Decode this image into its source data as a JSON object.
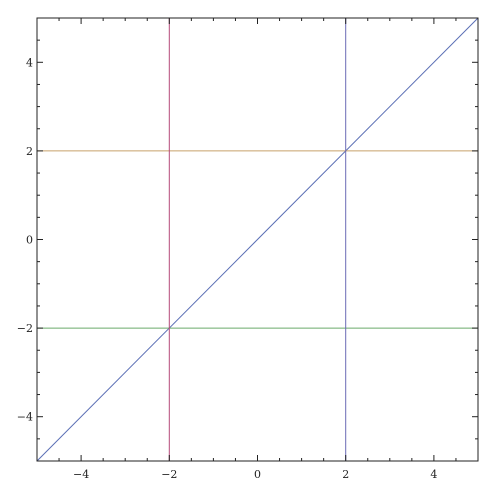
{
  "chart_data": {
    "type": "line",
    "title": "",
    "xlabel": "",
    "ylabel": "",
    "xlim": [
      -5,
      5
    ],
    "ylim": [
      -5,
      5
    ],
    "grid": false,
    "frame": true,
    "x_ticks": [
      {
        "value": -4,
        "label": "−4"
      },
      {
        "value": -2,
        "label": "−2"
      },
      {
        "value": 0,
        "label": "0"
      },
      {
        "value": 2,
        "label": "2"
      },
      {
        "value": 4,
        "label": "4"
      }
    ],
    "y_ticks": [
      {
        "value": -4,
        "label": "−4"
      },
      {
        "value": -2,
        "label": "−2"
      },
      {
        "value": 0,
        "label": "0"
      },
      {
        "value": 2,
        "label": "2"
      },
      {
        "value": 4,
        "label": "4"
      }
    ],
    "series": [
      {
        "points": [
          [
            -5,
            -5
          ],
          [
            5,
            5
          ]
        ],
        "color": "#5b6fb5"
      },
      {
        "points": [
          [
            -5,
            2
          ],
          [
            5,
            2
          ]
        ],
        "color": "#c8a06a"
      },
      {
        "points": [
          [
            -5,
            -2
          ],
          [
            5,
            -2
          ]
        ],
        "color": "#6aaa6a"
      },
      {
        "points": [
          [
            -2,
            -5
          ],
          [
            -2,
            5
          ]
        ],
        "color": "#b54a7a"
      },
      {
        "points": [
          [
            2,
            -5
          ],
          [
            2,
            5
          ]
        ],
        "color": "#6a6ab5"
      }
    ],
    "frame_color": "#222222"
  }
}
